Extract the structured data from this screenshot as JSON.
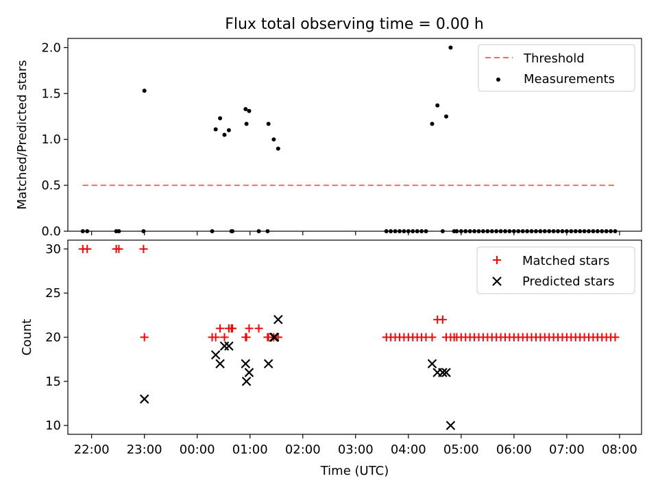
{
  "title": "Flux total observing time = 0.00 h",
  "colors": {
    "threshold": "#ff6666",
    "measurements": "#000000",
    "matched": "#ff0000",
    "predicted": "#000000"
  },
  "chart_data": [
    {
      "type": "scatter",
      "ylabel": "Matched/Predicted stars",
      "xlim": [
        "21:33",
        "08:25"
      ],
      "ylim": [
        0,
        2.1
      ],
      "yticks": [
        "0.0",
        "0.5",
        "1.0",
        "1.5",
        "2.0"
      ],
      "legend": {
        "position": "top-right",
        "entries": [
          "Threshold",
          "Measurements"
        ]
      },
      "threshold": {
        "name": "Threshold",
        "value": 0.5,
        "x_start": "21:50",
        "x_end": "07:55"
      },
      "series": [
        {
          "name": "Measurements",
          "x": [
            "21:50",
            "21:55",
            "22:28",
            "22:31",
            "22:59",
            "23:00",
            "00:17",
            "00:21",
            "00:26",
            "00:31",
            "00:36",
            "00:39",
            "00:40",
            "00:55",
            "00:56",
            "00:59",
            "01:10",
            "01:20",
            "01:21",
            "01:27",
            "01:32",
            "03:35",
            "03:40",
            "03:45",
            "03:50",
            "03:55",
            "04:00",
            "04:05",
            "04:10",
            "04:15",
            "04:20",
            "04:27",
            "04:33",
            "04:39",
            "04:43",
            "04:48",
            "04:52",
            "04:55",
            "05:00",
            "05:05",
            "05:10",
            "05:15",
            "05:20",
            "05:25",
            "05:30",
            "05:35",
            "05:40",
            "05:45",
            "05:50",
            "05:55",
            "06:00",
            "06:05",
            "06:10",
            "06:15",
            "06:20",
            "06:25",
            "06:30",
            "06:35",
            "06:40",
            "06:45",
            "06:50",
            "06:55",
            "07:00",
            "07:05",
            "07:10",
            "07:15",
            "07:20",
            "07:25",
            "07:30",
            "07:35",
            "07:40",
            "07:45",
            "07:50",
            "07:55"
          ],
          "y": [
            0,
            0,
            0,
            0,
            0,
            1.53,
            0,
            1.11,
            1.23,
            1.05,
            1.1,
            0,
            0,
            1.33,
            1.17,
            1.31,
            0,
            0,
            1.17,
            1.0,
            0.9,
            0,
            0,
            0,
            0,
            0,
            0,
            0,
            0,
            0,
            0,
            1.17,
            1.37,
            0,
            1.25,
            2.0,
            0,
            0,
            0,
            0,
            0,
            0,
            0,
            0,
            0,
            0,
            0,
            0,
            0,
            0,
            0,
            0,
            0,
            0,
            0,
            0,
            0,
            0,
            0,
            0,
            0,
            0,
            0,
            0,
            0,
            0,
            0,
            0,
            0,
            0,
            0,
            0,
            0,
            0
          ]
        }
      ]
    },
    {
      "type": "scatter",
      "xlabel": "Time (UTC)",
      "ylabel": "Count",
      "xlim": [
        "21:33",
        "08:25"
      ],
      "ylim": [
        9,
        31
      ],
      "yticks": [
        "10",
        "15",
        "20",
        "25",
        "30"
      ],
      "xticks": [
        "22:00",
        "23:00",
        "00:00",
        "01:00",
        "02:00",
        "03:00",
        "04:00",
        "05:00",
        "06:00",
        "07:00",
        "08:00"
      ],
      "legend": {
        "position": "top-right",
        "entries": [
          "Matched stars",
          "Predicted stars"
        ]
      },
      "series": [
        {
          "name": "Matched stars",
          "x": [
            "21:50",
            "21:55",
            "22:28",
            "22:31",
            "22:59",
            "23:00",
            "00:17",
            "00:21",
            "00:26",
            "00:31",
            "00:36",
            "00:39",
            "00:40",
            "00:55",
            "00:56",
            "00:59",
            "01:10",
            "01:20",
            "01:21",
            "01:27",
            "01:32",
            "03:35",
            "03:40",
            "03:45",
            "03:50",
            "03:55",
            "04:00",
            "04:05",
            "04:10",
            "04:15",
            "04:20",
            "04:27",
            "04:33",
            "04:39",
            "04:43",
            "04:48",
            "04:52",
            "04:55",
            "05:00",
            "05:05",
            "05:10",
            "05:15",
            "05:20",
            "05:25",
            "05:30",
            "05:35",
            "05:40",
            "05:45",
            "05:50",
            "05:55",
            "06:00",
            "06:05",
            "06:10",
            "06:15",
            "06:20",
            "06:25",
            "06:30",
            "06:35",
            "06:40",
            "06:45",
            "06:50",
            "06:55",
            "07:00",
            "07:05",
            "07:10",
            "07:15",
            "07:20",
            "07:25",
            "07:30",
            "07:35",
            "07:40",
            "07:45",
            "07:50",
            "07:55"
          ],
          "y": [
            30,
            30,
            30,
            30,
            30,
            20,
            20,
            20,
            21,
            20,
            21,
            21,
            21,
            20,
            20,
            21,
            21,
            20,
            20,
            20,
            20,
            20,
            20,
            20,
            20,
            20,
            20,
            20,
            20,
            20,
            20,
            20,
            22,
            22,
            20,
            20,
            20,
            20,
            20,
            20,
            20,
            20,
            20,
            20,
            20,
            20,
            20,
            20,
            20,
            20,
            20,
            20,
            20,
            20,
            20,
            20,
            20,
            20,
            20,
            20,
            20,
            20,
            20,
            20,
            20,
            20,
            20,
            20,
            20,
            20,
            20,
            20,
            20,
            20
          ]
        },
        {
          "name": "Predicted stars",
          "x": [
            "23:00",
            "00:21",
            "00:26",
            "00:31",
            "00:36",
            "00:55",
            "00:56",
            "00:59",
            "01:21",
            "01:27",
            "01:28",
            "01:32",
            "04:27",
            "04:33",
            "04:39",
            "04:43",
            "04:48"
          ],
          "y": [
            13,
            18,
            17,
            19,
            19,
            17,
            15,
            16,
            17,
            20,
            20,
            22,
            17,
            16,
            16,
            16,
            10
          ]
        }
      ]
    }
  ]
}
